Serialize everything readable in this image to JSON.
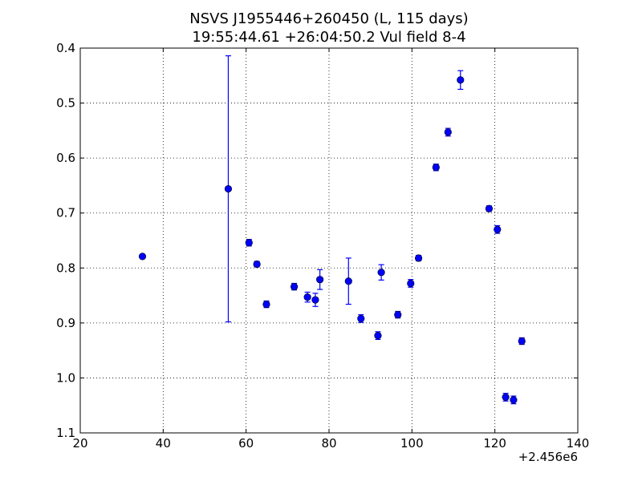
{
  "chart_data": {
    "type": "scatter",
    "title": "NSVS J1955446+260450 (L, 115 days)",
    "subtitle": "19:55:44.61 +26:04:50.2 Vul field 8-4",
    "xlabel": "",
    "ylabel": "",
    "x_offset_label": "+2.456e6",
    "xlim": [
      20,
      140
    ],
    "ylim": [
      1.1,
      0.4
    ],
    "y_inverted": true,
    "x_ticks": [
      20,
      40,
      60,
      80,
      100,
      120,
      140
    ],
    "x_tick_labels": [
      "20",
      "40",
      "60",
      "80",
      "100",
      "120",
      "140"
    ],
    "y_ticks": [
      0.4,
      0.5,
      0.6,
      0.7,
      0.8,
      0.9,
      1.0,
      1.1
    ],
    "y_tick_labels": [
      "0.4",
      "0.5",
      "0.6",
      "0.7",
      "0.8",
      "0.9",
      "1.0",
      "1.1"
    ],
    "grid": true,
    "marker_color": "#0000ff",
    "points": [
      {
        "x": 35.0,
        "y": 0.779,
        "err": 0.003
      },
      {
        "x": 55.7,
        "y": 0.656,
        "err": 0.242
      },
      {
        "x": 60.7,
        "y": 0.754,
        "err": 0.006
      },
      {
        "x": 62.6,
        "y": 0.793,
        "err": 0.005
      },
      {
        "x": 64.9,
        "y": 0.866,
        "err": 0.006
      },
      {
        "x": 71.6,
        "y": 0.834,
        "err": 0.006
      },
      {
        "x": 74.8,
        "y": 0.853,
        "err": 0.009
      },
      {
        "x": 76.7,
        "y": 0.858,
        "err": 0.012
      },
      {
        "x": 77.8,
        "y": 0.821,
        "err": 0.018
      },
      {
        "x": 84.7,
        "y": 0.824,
        "err": 0.042
      },
      {
        "x": 87.7,
        "y": 0.892,
        "err": 0.007
      },
      {
        "x": 91.8,
        "y": 0.923,
        "err": 0.007
      },
      {
        "x": 92.6,
        "y": 0.808,
        "err": 0.014
      },
      {
        "x": 96.6,
        "y": 0.885,
        "err": 0.006
      },
      {
        "x": 99.7,
        "y": 0.828,
        "err": 0.007
      },
      {
        "x": 101.6,
        "y": 0.782,
        "err": 0.005
      },
      {
        "x": 105.8,
        "y": 0.617,
        "err": 0.006
      },
      {
        "x": 108.7,
        "y": 0.553,
        "err": 0.007
      },
      {
        "x": 111.7,
        "y": 0.458,
        "err": 0.017
      },
      {
        "x": 118.6,
        "y": 0.692,
        "err": 0.005
      },
      {
        "x": 120.6,
        "y": 0.73,
        "err": 0.007
      },
      {
        "x": 122.6,
        "y": 1.035,
        "err": 0.007
      },
      {
        "x": 124.5,
        "y": 1.04,
        "err": 0.007
      },
      {
        "x": 126.5,
        "y": 0.933,
        "err": 0.006
      }
    ]
  }
}
